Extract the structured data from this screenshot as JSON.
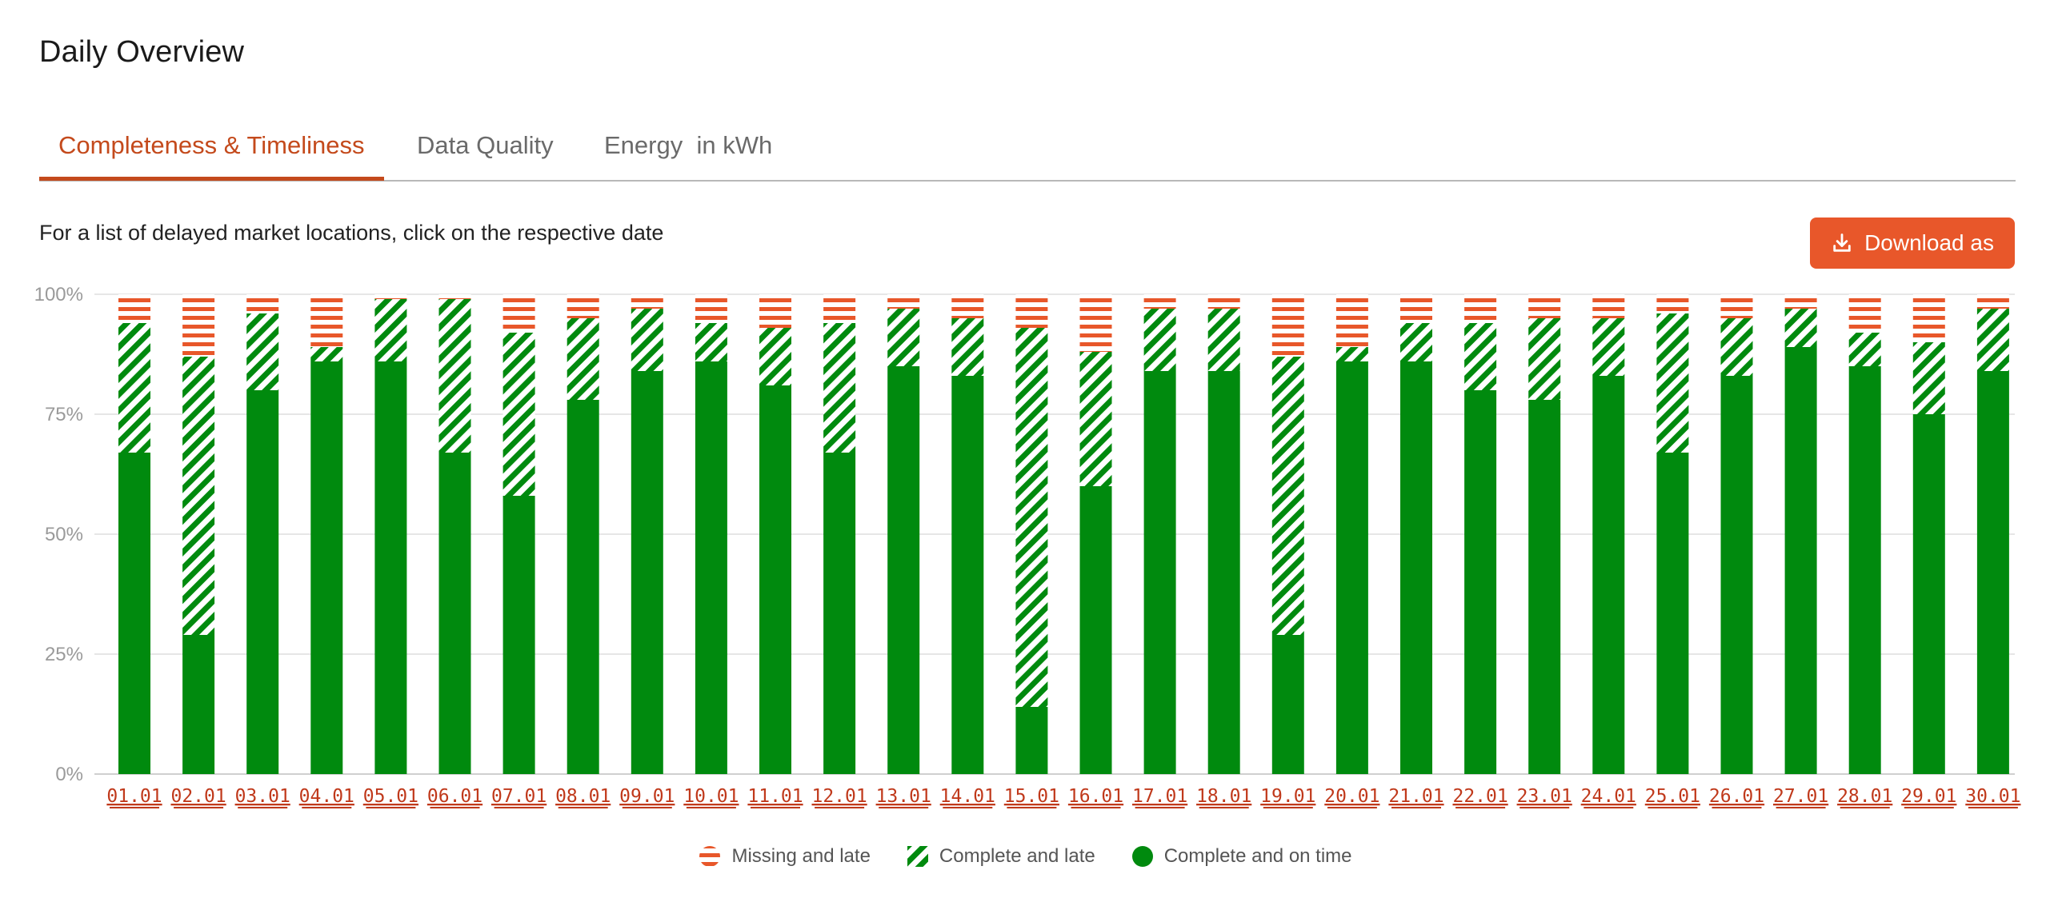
{
  "page": {
    "title": "Daily Overview",
    "tabs": [
      {
        "label": "Completeness & Timeliness",
        "active": true
      },
      {
        "label": "Data Quality",
        "active": false
      },
      {
        "label": "Energy  in kWh",
        "active": false
      }
    ],
    "hint": "For a list of delayed market locations, click on the respective date",
    "download_label": "Download as",
    "colors": {
      "accent": "#e8572a",
      "tab_active": "#c44a1c",
      "complete_on_time": "#008a0e",
      "missing": "#e8572a"
    }
  },
  "chart_data": {
    "type": "bar",
    "stacked": true,
    "y_ticks": [
      "0%",
      "25%",
      "50%",
      "75%",
      "100%"
    ],
    "ylim": [
      0,
      100
    ],
    "grid": true,
    "legend_position": "bottom-center",
    "categories": [
      "01.01",
      "02.01",
      "03.01",
      "04.01",
      "05.01",
      "06.01",
      "07.01",
      "08.01",
      "09.01",
      "10.01",
      "11.01",
      "12.01",
      "13.01",
      "14.01",
      "15.01",
      "16.01",
      "17.01",
      "18.01",
      "19.01",
      "20.01",
      "21.01",
      "22.01",
      "23.01",
      "24.01",
      "25.01",
      "26.01",
      "27.01",
      "28.01",
      "29.01",
      "30.01"
    ],
    "series": [
      {
        "name": "Complete and on time",
        "color": "#008a0e",
        "pattern": "solid",
        "values": [
          67,
          29,
          80,
          86,
          86,
          67,
          58,
          78,
          84,
          86,
          81,
          67,
          85,
          83,
          14,
          60,
          84,
          84,
          29,
          86,
          86,
          80,
          78,
          83,
          67,
          83,
          89,
          85,
          75,
          84
        ]
      },
      {
        "name": "Complete and late",
        "color": "#008a0e",
        "pattern": "diagonal-stripes",
        "values": [
          27,
          58,
          16,
          3,
          13,
          32,
          34,
          17,
          13,
          8,
          12,
          27,
          12,
          12,
          79,
          28,
          13,
          13,
          58,
          3,
          8,
          14,
          17,
          12,
          29,
          12,
          8,
          7,
          15,
          13
        ]
      },
      {
        "name": "Missing and late",
        "color": "#e8572a",
        "pattern": "horizontal-stripes",
        "values": [
          6,
          13,
          4,
          11,
          1,
          1,
          8,
          5,
          3,
          6,
          7,
          6,
          3,
          5,
          7,
          12,
          3,
          3,
          13,
          11,
          6,
          6,
          5,
          5,
          4,
          5,
          3,
          8,
          10,
          3
        ]
      }
    ]
  }
}
